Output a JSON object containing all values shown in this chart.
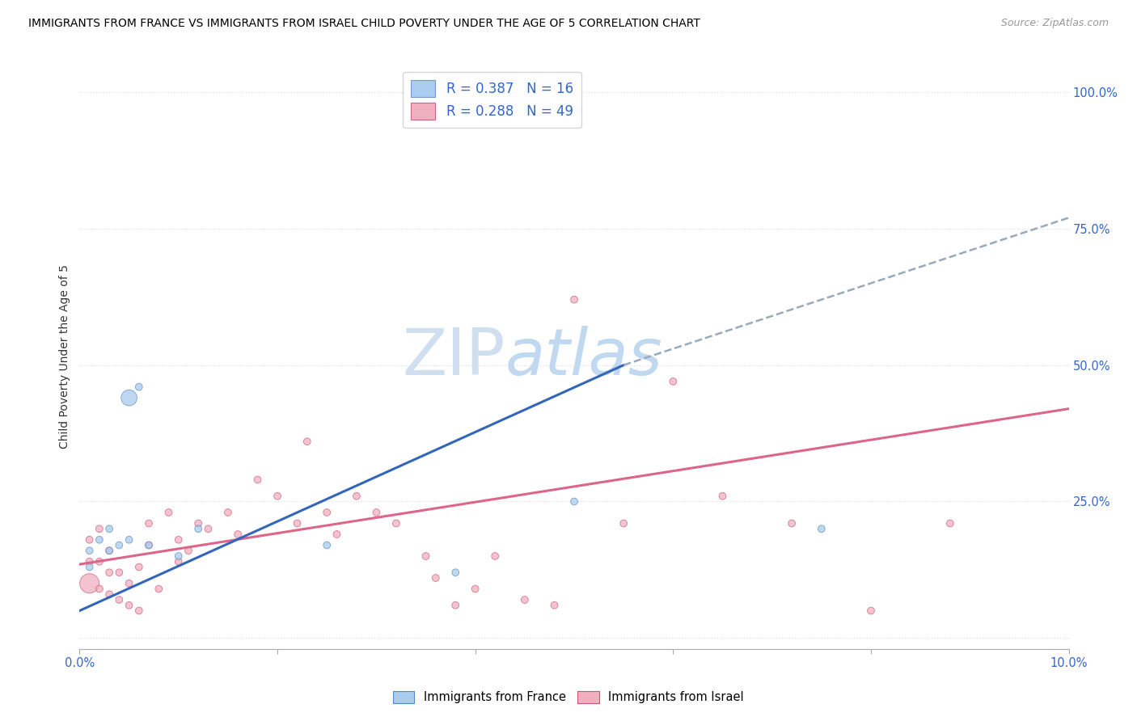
{
  "title": "IMMIGRANTS FROM FRANCE VS IMMIGRANTS FROM ISRAEL CHILD POVERTY UNDER THE AGE OF 5 CORRELATION CHART",
  "source": "Source: ZipAtlas.com",
  "ylabel": "Child Poverty Under the Age of 5",
  "yticks": [
    0.0,
    0.25,
    0.5,
    0.75,
    1.0
  ],
  "ytick_labels": [
    "",
    "25.0%",
    "50.0%",
    "75.0%",
    "100.0%"
  ],
  "xlim": [
    0.0,
    0.1
  ],
  "ylim": [
    -0.02,
    1.05
  ],
  "legend_entries": [
    {
      "label": "R = 0.387   N = 16",
      "color": "#aaccee"
    },
    {
      "label": "R = 0.288   N = 49",
      "color": "#f0b0c0"
    }
  ],
  "france_scatter": {
    "x": [
      0.001,
      0.001,
      0.002,
      0.003,
      0.003,
      0.004,
      0.005,
      0.005,
      0.006,
      0.007,
      0.01,
      0.012,
      0.025,
      0.038,
      0.05,
      0.075
    ],
    "y": [
      0.13,
      0.16,
      0.18,
      0.2,
      0.16,
      0.17,
      0.18,
      0.44,
      0.46,
      0.17,
      0.15,
      0.2,
      0.17,
      0.12,
      0.25,
      0.2
    ],
    "sizes": [
      40,
      40,
      40,
      40,
      40,
      40,
      40,
      200,
      40,
      40,
      40,
      40,
      40,
      40,
      40,
      40
    ],
    "color": "#aaccee",
    "edgecolor": "#5588bb",
    "alpha": 0.75
  },
  "israel_scatter": {
    "x": [
      0.001,
      0.001,
      0.001,
      0.002,
      0.002,
      0.002,
      0.003,
      0.003,
      0.003,
      0.004,
      0.004,
      0.005,
      0.005,
      0.006,
      0.006,
      0.007,
      0.007,
      0.008,
      0.009,
      0.01,
      0.01,
      0.011,
      0.012,
      0.013,
      0.015,
      0.016,
      0.018,
      0.02,
      0.022,
      0.023,
      0.025,
      0.026,
      0.028,
      0.03,
      0.032,
      0.035,
      0.036,
      0.038,
      0.04,
      0.042,
      0.045,
      0.048,
      0.05,
      0.055,
      0.06,
      0.065,
      0.072,
      0.08,
      0.088
    ],
    "y": [
      0.1,
      0.14,
      0.18,
      0.09,
      0.14,
      0.2,
      0.08,
      0.12,
      0.16,
      0.07,
      0.12,
      0.06,
      0.1,
      0.05,
      0.13,
      0.17,
      0.21,
      0.09,
      0.23,
      0.14,
      0.18,
      0.16,
      0.21,
      0.2,
      0.23,
      0.19,
      0.29,
      0.26,
      0.21,
      0.36,
      0.23,
      0.19,
      0.26,
      0.23,
      0.21,
      0.15,
      0.11,
      0.06,
      0.09,
      0.15,
      0.07,
      0.06,
      0.62,
      0.21,
      0.47,
      0.26,
      0.21,
      0.05,
      0.21
    ],
    "sizes": [
      300,
      40,
      40,
      40,
      40,
      40,
      40,
      40,
      40,
      40,
      40,
      40,
      40,
      40,
      40,
      40,
      40,
      40,
      40,
      40,
      40,
      40,
      40,
      40,
      40,
      40,
      40,
      40,
      40,
      40,
      40,
      40,
      40,
      40,
      40,
      40,
      40,
      40,
      40,
      40,
      40,
      40,
      40,
      40,
      40,
      40,
      40,
      40,
      40
    ],
    "color": "#f0b0c0",
    "edgecolor": "#cc5577",
    "alpha": 0.75
  },
  "france_trendline_solid": {
    "x": [
      0.0,
      0.055
    ],
    "y": [
      0.05,
      0.5
    ],
    "color": "#3366bb",
    "linewidth": 2.2
  },
  "france_trendline_dashed": {
    "x": [
      0.055,
      0.1
    ],
    "y": [
      0.5,
      0.77
    ],
    "color": "#99aabb",
    "linewidth": 1.8,
    "linestyle": "--"
  },
  "israel_trendline": {
    "x": [
      0.0,
      0.1
    ],
    "y": [
      0.135,
      0.42
    ],
    "color": "#dd6688",
    "linewidth": 2.2
  },
  "watermark_zip": "ZIP",
  "watermark_atlas": "atlas",
  "watermark_color_zip": "#d0dff0",
  "watermark_color_atlas": "#c0d8f0",
  "watermark_fontsize": 58,
  "bg_color": "#ffffff",
  "grid_color": "#dddddd",
  "grid_linestyle": ":",
  "bottom_legend": [
    {
      "label": "Immigrants from France",
      "color": "#aaccee",
      "edgecolor": "#5588bb"
    },
    {
      "label": "Immigrants from Israel",
      "color": "#f0b0c0",
      "edgecolor": "#cc5577"
    }
  ]
}
